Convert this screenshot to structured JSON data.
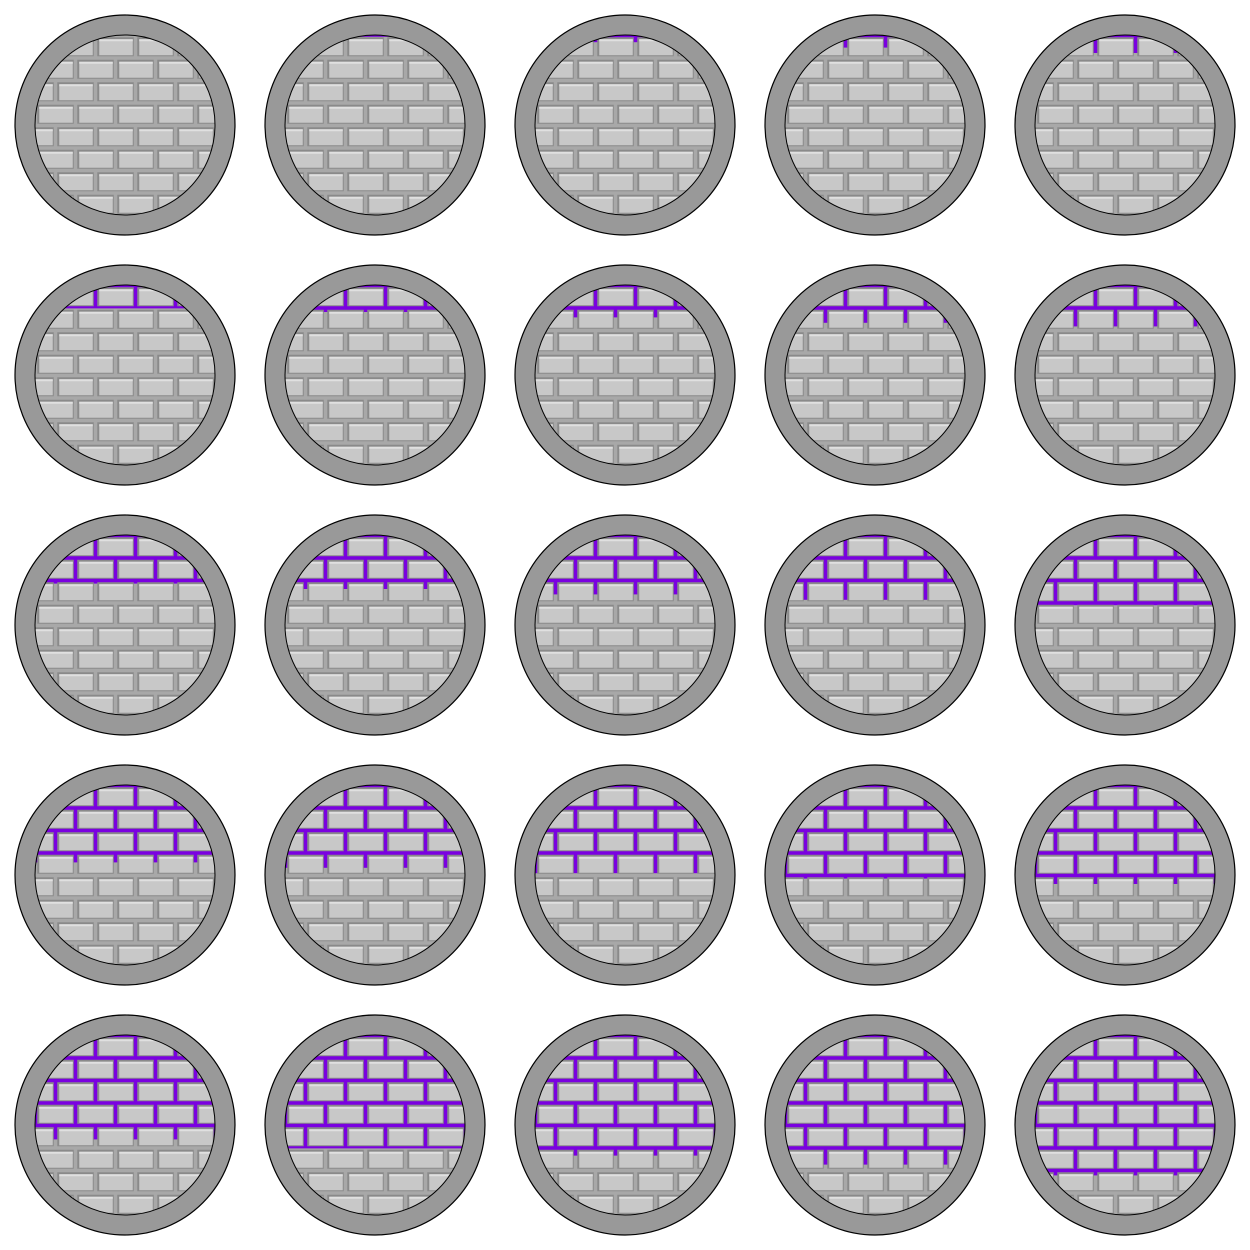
{
  "sheet": {
    "rows": 5,
    "cols": 5,
    "frame_count": 25,
    "fill_fraction": [
      0.0,
      0.01,
      0.04,
      0.07,
      0.1,
      0.13,
      0.15,
      0.18,
      0.21,
      0.23,
      0.27,
      0.3,
      0.33,
      0.36,
      0.39,
      0.43,
      0.46,
      0.49,
      0.52,
      0.55,
      0.58,
      0.63,
      0.67,
      0.72,
      0.78
    ],
    "colors": {
      "background": "#ffffff",
      "rim": "#999999",
      "outline": "#000000",
      "brick_face": "#c8c8c8",
      "brick_highlight": "#e0e0e0",
      "brick_shadow": "#8a8a8a",
      "mortar_gray": "#a8a8a8",
      "mortar_glow": "#7a00e0",
      "mortar_glow_edge": "#5a00b0"
    },
    "icon": "brick-wall-porthole-icon"
  }
}
